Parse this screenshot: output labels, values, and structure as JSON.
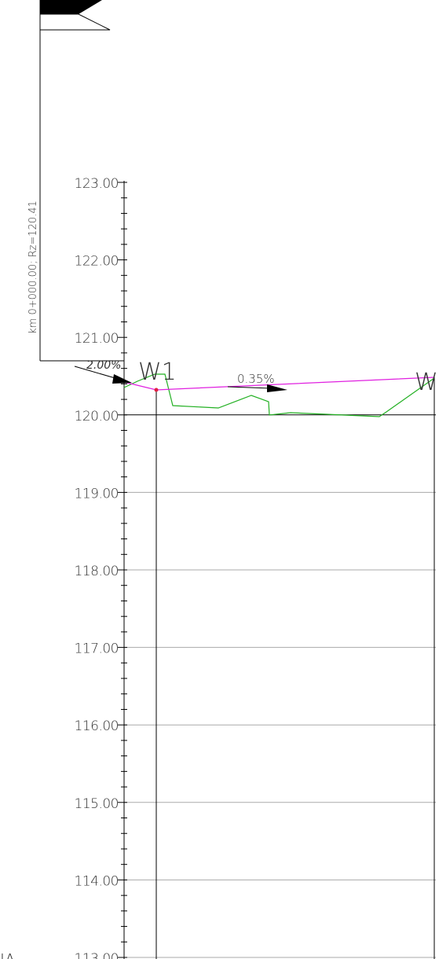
{
  "profile": {
    "station_label": "km 0+000.00; Rz=120.41",
    "elevation_ticks": [
      "123.00",
      "122.00",
      "121.00",
      "120.00",
      "119.00",
      "118.00",
      "117.00",
      "116.00",
      "115.00",
      "114.00",
      "113.00"
    ],
    "start_grade": "2.00%",
    "grade": "0.35%",
    "point_start": "W1",
    "point_end": "W",
    "corner_text": "IA"
  }
}
